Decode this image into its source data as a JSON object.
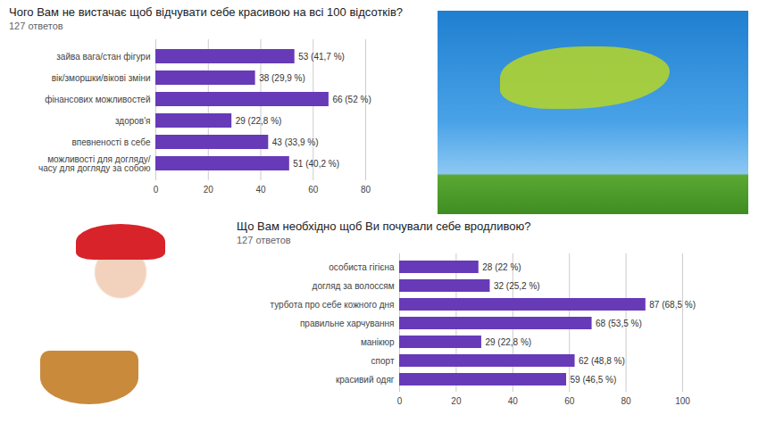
{
  "chart_data": [
    {
      "type": "bar",
      "orientation": "horizontal",
      "title": "Чого Вам не вистачає щоб відчувати себе красивою на всі 100 відсотків?",
      "subtitle": "127 ответов",
      "categories": [
        "зайва вага/стан фігури",
        "вік/зморшки/вікові зміни",
        "фінансових можливостей",
        "здоров'я",
        "впевненості в себе",
        "можливості для догляду/ часу для догляду за собою"
      ],
      "values": [
        53,
        38,
        66,
        29,
        43,
        51
      ],
      "value_labels": [
        "53 (41,7 %)",
        "38 (29,9 %)",
        "66 (52 %)",
        "29 (22,8 %)",
        "43 (33,9 %)",
        "51 (40,2 %)"
      ],
      "color": "#673ab7",
      "xlim": [
        0,
        80
      ],
      "xticks": [
        0,
        20,
        40,
        60,
        80
      ],
      "grid": true,
      "data_labels": true
    },
    {
      "type": "bar",
      "orientation": "horizontal",
      "title": "Що Вам необхідно щоб Ви почували себе вродливою?",
      "subtitle": "127 ответов",
      "categories": [
        "особиста гігієна",
        "догляд за волоссям",
        "турбота про себе кожного дня",
        "правильне харчування",
        "манікюр",
        "спорт",
        "красивий одяг"
      ],
      "values": [
        28,
        32,
        87,
        68,
        29,
        62,
        59
      ],
      "value_labels": [
        "28 (22 %)",
        "32 (25,2 %)",
        "87 (68,5 %)",
        "68 (53,5 %)",
        "29 (22,8 %)",
        "62 (48,8 %)",
        "59 (46,5 %)"
      ],
      "color": "#673ab7",
      "xlim": [
        0,
        100
      ],
      "xticks": [
        0,
        20,
        40,
        60,
        80,
        100
      ],
      "grid": true,
      "data_labels": true
    }
  ]
}
